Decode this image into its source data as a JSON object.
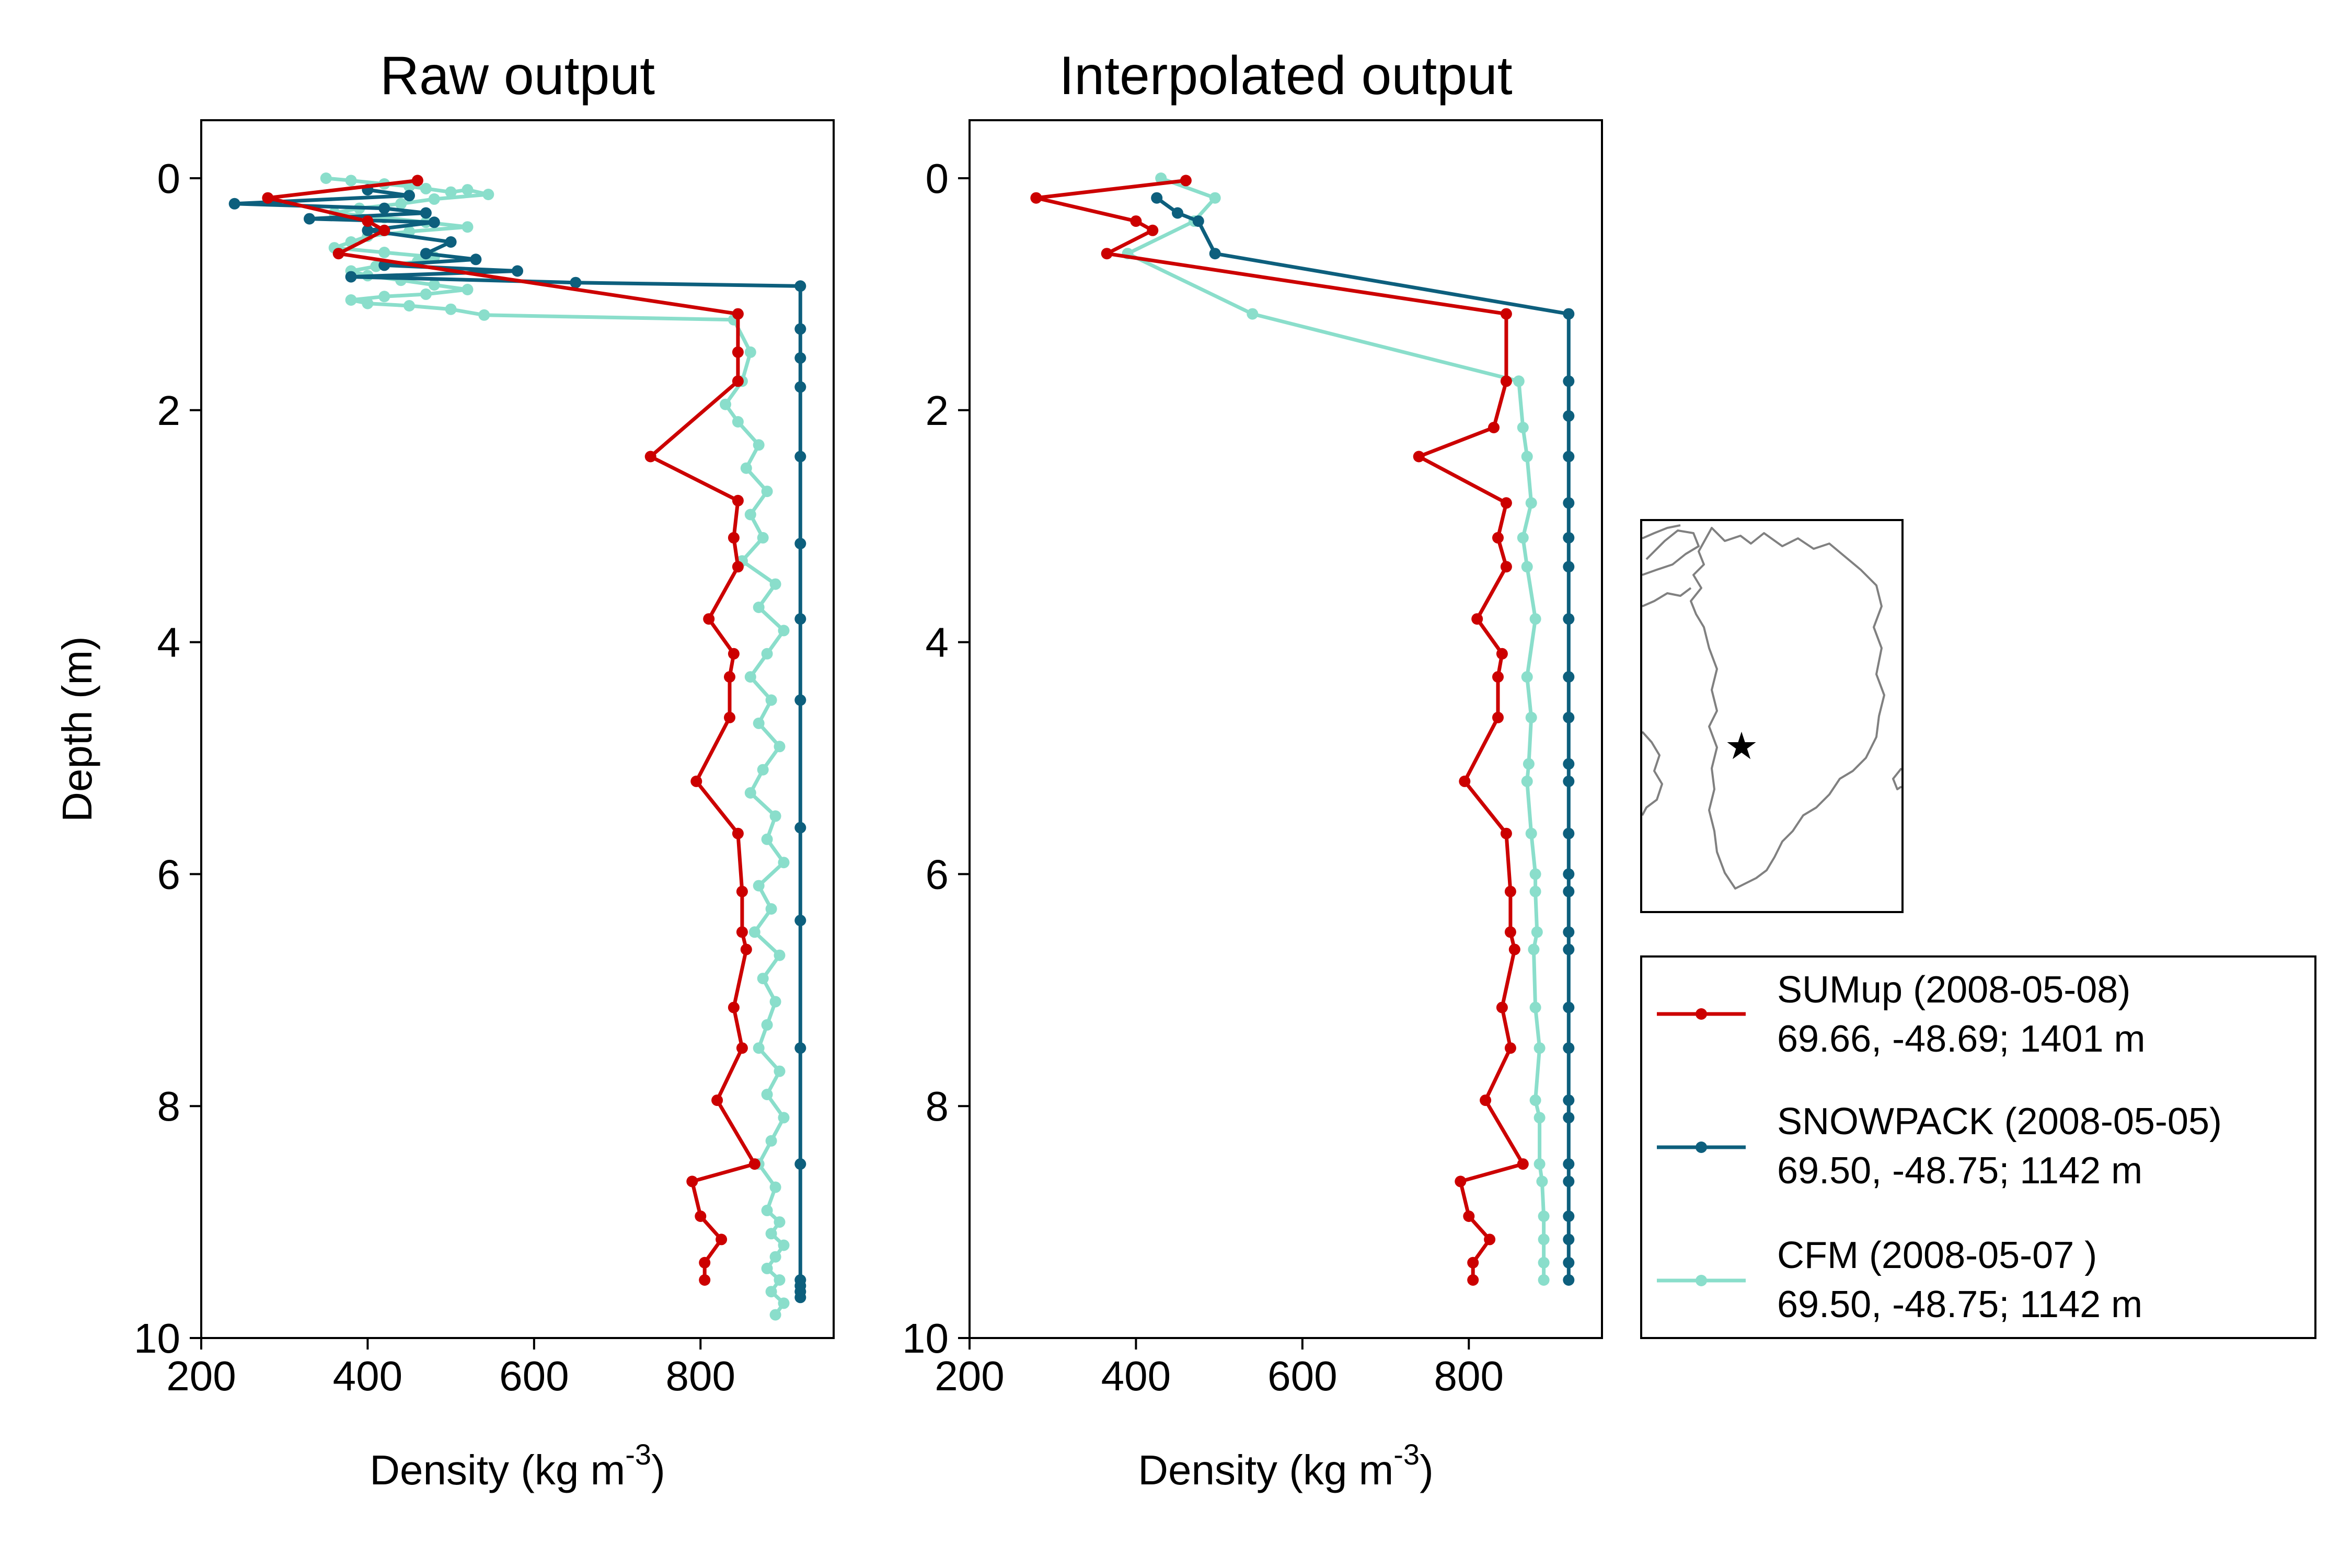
{
  "chart_data": [
    {
      "type": "line",
      "title": "Raw output",
      "xlabel": "Density (kg m",
      "xlabel_sup": "-3",
      "xlabel_end": ")",
      "ylabel": "Depth (m)",
      "xlim": [
        200,
        960
      ],
      "ylim": [
        10,
        -0.5
      ],
      "y_inverted": true,
      "xticks": [
        200,
        400,
        600,
        800
      ],
      "yticks": [
        0,
        2,
        4,
        6,
        8,
        10
      ],
      "series": [
        {
          "key": "cfm",
          "color": "#8adecb",
          "x": [
            350,
            380,
            420,
            450,
            470,
            500,
            520,
            545,
            480,
            440,
            390,
            360,
            420,
            470,
            520,
            450,
            400,
            380,
            360,
            420,
            480,
            460,
            410,
            380,
            400,
            440,
            480,
            520,
            470,
            420,
            380,
            400,
            450,
            500,
            540,
            840,
            860,
            850,
            830,
            845,
            870,
            855,
            880,
            860,
            875,
            850,
            890,
            870,
            900,
            880,
            860,
            885,
            870,
            895,
            875,
            860,
            890,
            880,
            900,
            870,
            885,
            865,
            895,
            875,
            890,
            880,
            870,
            895,
            880,
            900,
            885,
            870,
            890,
            880,
            895,
            885,
            900,
            890,
            880,
            895,
            885,
            900,
            890
          ],
          "y": [
            0.0,
            0.02,
            0.05,
            0.07,
            0.09,
            0.12,
            0.1,
            0.14,
            0.18,
            0.22,
            0.26,
            0.3,
            0.34,
            0.38,
            0.42,
            0.46,
            0.5,
            0.55,
            0.6,
            0.64,
            0.68,
            0.72,
            0.76,
            0.8,
            0.84,
            0.88,
            0.92,
            0.96,
            1.0,
            1.02,
            1.05,
            1.08,
            1.1,
            1.13,
            1.18,
            1.22,
            1.5,
            1.75,
            1.95,
            2.1,
            2.3,
            2.5,
            2.7,
            2.9,
            3.1,
            3.3,
            3.5,
            3.7,
            3.9,
            4.1,
            4.3,
            4.5,
            4.7,
            4.9,
            5.1,
            5.3,
            5.5,
            5.7,
            5.9,
            6.1,
            6.3,
            6.5,
            6.7,
            6.9,
            7.1,
            7.3,
            7.5,
            7.7,
            7.9,
            8.1,
            8.3,
            8.5,
            8.7,
            8.9,
            9.0,
            9.1,
            9.2,
            9.3,
            9.4,
            9.5,
            9.6,
            9.7,
            9.8
          ]
        },
        {
          "key": "snowpack",
          "color": "#0d5f7d",
          "x": [
            400,
            450,
            240,
            420,
            470,
            330,
            480,
            400,
            500,
            470,
            530,
            420,
            580,
            380,
            650,
            920,
            920,
            920,
            920,
            920,
            920,
            920,
            920,
            920,
            920,
            920,
            920,
            920,
            920,
            920,
            920
          ],
          "y": [
            0.1,
            0.15,
            0.22,
            0.26,
            0.3,
            0.35,
            0.38,
            0.45,
            0.55,
            0.65,
            0.7,
            0.75,
            0.8,
            0.85,
            0.9,
            0.93,
            1.3,
            1.55,
            1.8,
            2.4,
            3.15,
            3.8,
            4.5,
            5.6,
            6.4,
            7.5,
            8.5,
            9.5,
            9.55,
            9.6,
            9.65
          ]
        },
        {
          "key": "sumup",
          "color": "#cc0000",
          "x": [
            460,
            280,
            400,
            420,
            365,
            845,
            845,
            845,
            740,
            845,
            840,
            845,
            810,
            840,
            835,
            835,
            795,
            845,
            850,
            850,
            855,
            840,
            850,
            820,
            865,
            790,
            800,
            825,
            805,
            805
          ],
          "y": [
            0.02,
            0.17,
            0.37,
            0.45,
            0.65,
            1.17,
            1.5,
            1.75,
            2.4,
            2.78,
            3.1,
            3.35,
            3.8,
            4.1,
            4.3,
            4.65,
            5.2,
            5.65,
            6.15,
            6.5,
            6.65,
            7.15,
            7.5,
            7.95,
            8.5,
            8.65,
            8.95,
            9.15,
            9.35,
            9.5
          ]
        }
      ]
    },
    {
      "type": "line",
      "title": "Interpolated output",
      "xlabel": "Density (kg m",
      "xlabel_sup": "-3",
      "xlabel_end": ")",
      "ylabel": "",
      "xlim": [
        200,
        960
      ],
      "ylim": [
        10,
        -0.5
      ],
      "y_inverted": true,
      "xticks": [
        200,
        400,
        600,
        800
      ],
      "yticks": [
        0,
        2,
        4,
        6,
        8,
        10
      ],
      "series": [
        {
          "key": "cfm",
          "color": "#8adecb",
          "x": [
            430,
            495,
            470,
            390,
            540,
            860,
            865,
            870,
            875,
            865,
            870,
            880,
            870,
            875,
            872,
            870,
            875,
            880,
            880,
            882,
            878,
            880,
            885,
            880,
            885,
            885,
            888,
            890,
            890,
            890,
            890
          ],
          "y": [
            0.0,
            0.17,
            0.37,
            0.65,
            1.17,
            1.75,
            2.15,
            2.4,
            2.8,
            3.1,
            3.35,
            3.8,
            4.3,
            4.65,
            5.05,
            5.2,
            5.65,
            6.0,
            6.15,
            6.5,
            6.65,
            7.15,
            7.5,
            7.95,
            8.1,
            8.5,
            8.65,
            8.95,
            9.15,
            9.35,
            9.5
          ]
        },
        {
          "key": "snowpack",
          "color": "#0d5f7d",
          "x": [
            425,
            450,
            475,
            495,
            920,
            920,
            920,
            920,
            920,
            920,
            920,
            920,
            920,
            920,
            920,
            920,
            920,
            920,
            920,
            920,
            920,
            920,
            920,
            920,
            920,
            920,
            920,
            920,
            920,
            920,
            920
          ],
          "y": [
            0.17,
            0.3,
            0.37,
            0.65,
            1.17,
            1.75,
            2.05,
            2.4,
            2.8,
            3.1,
            3.35,
            3.8,
            4.3,
            4.65,
            5.05,
            5.2,
            5.65,
            6.0,
            6.15,
            6.5,
            6.65,
            7.15,
            7.5,
            7.95,
            8.1,
            8.5,
            8.65,
            8.95,
            9.15,
            9.35,
            9.5
          ]
        },
        {
          "key": "sumup",
          "color": "#cc0000",
          "x": [
            460,
            280,
            400,
            420,
            365,
            845,
            845,
            830,
            740,
            845,
            835,
            845,
            810,
            840,
            835,
            835,
            795,
            845,
            850,
            850,
            855,
            840,
            850,
            820,
            865,
            790,
            800,
            825,
            805,
            805
          ],
          "y": [
            0.02,
            0.17,
            0.37,
            0.45,
            0.65,
            1.17,
            1.75,
            2.15,
            2.4,
            2.8,
            3.1,
            3.35,
            3.8,
            4.1,
            4.3,
            4.65,
            5.2,
            5.65,
            6.15,
            6.5,
            6.65,
            7.15,
            7.5,
            7.95,
            8.5,
            8.65,
            8.95,
            9.15,
            9.35,
            9.5
          ]
        }
      ]
    }
  ],
  "legend": {
    "items": [
      {
        "key": "sumup",
        "color": "#cc0000",
        "line1": "SUMup (2008-05-08)",
        "line2": "69.66, -48.69; 1401 m"
      },
      {
        "key": "snowpack",
        "color": "#0d5f7d",
        "line1": "SNOWPACK (2008-05-05)",
        "line2": "69.50, -48.75; 1142 m"
      },
      {
        "key": "cfm",
        "color": "#8adecb",
        "line1": "CFM (2008-05-07 )",
        "line2": "69.50, -48.75; 1142 m"
      }
    ]
  },
  "inset_map": {
    "marker": "star",
    "marker_glyph": "★",
    "coast_color": "#808080",
    "marker_color": "#000000"
  }
}
